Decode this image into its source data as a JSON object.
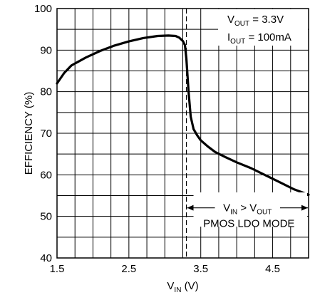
{
  "chart_data": {
    "type": "line",
    "title": "",
    "xlabel": {
      "main": "V",
      "sub": "IN",
      "rest": " (V)"
    },
    "ylabel": "EFFICIENCY (%)",
    "xlim": [
      1.5,
      5.0
    ],
    "ylim": [
      40,
      100
    ],
    "x_ticks": [
      1.5,
      2.5,
      3.5,
      4.5
    ],
    "x_tick_labels": [
      "1.5",
      "2.5",
      "3.5",
      "4.5"
    ],
    "y_ticks": [
      40,
      50,
      60,
      70,
      80,
      90,
      100
    ],
    "y_tick_labels": [
      "40",
      "50",
      "60",
      "70",
      "80",
      "90",
      "100"
    ],
    "x_grid_step": 0.25,
    "y_grid_step": 5,
    "grid": true,
    "marker_line": {
      "x": 3.3,
      "style": "dashed"
    },
    "series": [
      {
        "x": [
          1.5,
          1.6,
          1.7,
          1.9,
          2.1,
          2.3,
          2.5,
          2.7,
          2.9,
          3.05,
          3.15,
          3.2,
          3.25,
          3.28,
          3.3,
          3.33,
          3.36,
          3.4,
          3.45,
          3.5,
          3.6,
          3.7,
          3.85,
          4.0,
          4.2,
          4.4,
          4.6,
          4.8,
          5.0
        ],
        "y": [
          82,
          84.5,
          86.3,
          88.2,
          89.8,
          91.1,
          92.1,
          92.9,
          93.4,
          93.5,
          93.4,
          93.0,
          92.2,
          91.2,
          88.0,
          80.0,
          74.0,
          71.0,
          69.5,
          68.3,
          66.8,
          65.5,
          64.2,
          63.0,
          61.6,
          59.9,
          58.2,
          56.5,
          55.2
        ]
      }
    ],
    "annotations": {
      "vout": {
        "main": "V",
        "sub": "OUT",
        "rest": " = 3.3V"
      },
      "iout": {
        "main": "I",
        "sub": "OUT",
        "rest": " = 100mA"
      },
      "mode_condition": {
        "a_main": "V",
        "a_sub": "IN",
        "op": " > ",
        "b_main": "V",
        "b_sub": "OUT"
      },
      "mode_label": "PMOS LDO MODE"
    }
  }
}
